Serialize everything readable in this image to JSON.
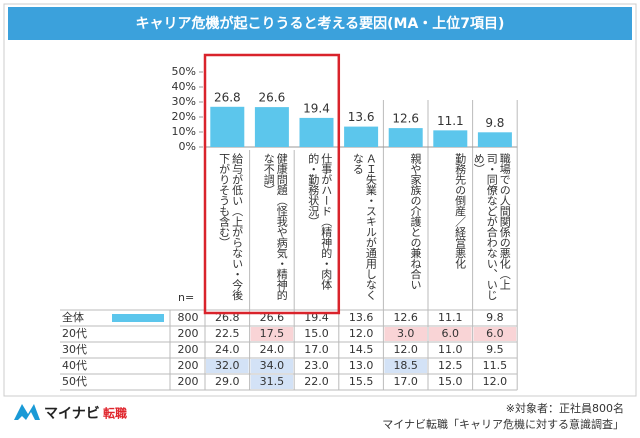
{
  "title": "キャリア危機が起こりうると考える要因(MA・上位7項目)",
  "chart_data": {
    "type": "bar",
    "categories": [
      "給与が低い（上がらない・今後下がりそうも含む）",
      "健康問題（怪我や病気・精神的な不調）",
      "仕事がハード（精神的・肉体的・勤務状況）",
      "ＡＩ失業・スキルが通用しなくなる",
      "親や家族の介護との兼ね合い",
      "勤務先の倒産／経営悪化",
      "職場での人間関係の悪化（上司・同僚などが合わない、いじめ）"
    ],
    "values": [
      26.8,
      26.6,
      19.4,
      13.6,
      12.6,
      11.1,
      9.8
    ],
    "color": "#5cc6ec",
    "ylim": [
      0,
      50
    ],
    "yticks": [
      {
        "value": 0,
        "label": "0%"
      },
      {
        "value": 10,
        "label": "10%"
      },
      {
        "value": 20,
        "label": "20%"
      },
      {
        "value": 30,
        "label": "30%"
      },
      {
        "value": 40,
        "label": "40%"
      },
      {
        "value": 50,
        "label": "50%"
      }
    ]
  },
  "table": {
    "n_label": "n=",
    "rows": [
      {
        "label": "全体",
        "n": "800",
        "cells": [
          "26.8",
          "26.6",
          "19.4",
          "13.6",
          "12.6",
          "11.1",
          "9.8"
        ],
        "cell_colors": [
          null,
          null,
          null,
          null,
          null,
          null,
          null
        ]
      },
      {
        "label": "20代",
        "n": "200",
        "cells": [
          "22.5",
          "17.5",
          "15.0",
          "12.0",
          "3.0",
          "6.0",
          "6.0"
        ],
        "cell_colors": [
          null,
          "#f9d4d6",
          null,
          null,
          "#f9d4d6",
          "#f9d4d6",
          "#f9d4d6"
        ]
      },
      {
        "label": "30代",
        "n": "200",
        "cells": [
          "24.0",
          "24.0",
          "17.0",
          "14.5",
          "12.0",
          "11.0",
          "9.5"
        ],
        "cell_colors": [
          null,
          null,
          null,
          null,
          null,
          null,
          null
        ]
      },
      {
        "label": "40代",
        "n": "200",
        "cells": [
          "32.0",
          "34.0",
          "23.0",
          "13.0",
          "18.5",
          "12.5",
          "11.5"
        ],
        "cell_colors": [
          "#d3e2f6",
          "#d3e2f6",
          null,
          null,
          "#d3e2f6",
          null,
          null
        ]
      },
      {
        "label": "50代",
        "n": "200",
        "cells": [
          "29.0",
          "31.5",
          "22.0",
          "15.5",
          "17.0",
          "15.0",
          "12.0"
        ],
        "cell_colors": [
          null,
          "#d3e2f6",
          null,
          null,
          null,
          null,
          null
        ]
      }
    ]
  },
  "footer": {
    "logo_brand": "マイナビ",
    "logo_service": "転職",
    "note": "※対象者：正社員800名",
    "source": "マイナビ転職「キャリア危機に対する意識調査」"
  }
}
